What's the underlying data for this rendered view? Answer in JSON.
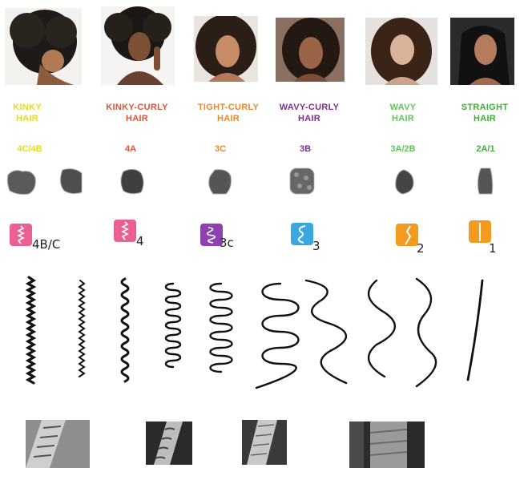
{
  "categories": [
    {
      "line1": "KINKY",
      "line2": "HAIR",
      "code": "4C/4B",
      "color": "#e5dd1a"
    },
    {
      "line1": "KINKY-CURLY",
      "line2": "HAIR",
      "code": "4A",
      "color": "#d9543a"
    },
    {
      "line1": "TIGHT-CURLY",
      "line2": "HAIR",
      "code": "3C",
      "color": "#e8892e"
    },
    {
      "line1": "WAVY-CURLY",
      "line2": "HAIR",
      "code": "3B",
      "color": "#7b2f8e"
    },
    {
      "line1": "WAVY",
      "line2": "HAIR",
      "code": "3A/2B",
      "color": "#63c35b"
    },
    {
      "line1": "STRAIGHT",
      "line2": "HAIR",
      "code": "2A/1",
      "color": "#3fae3a"
    }
  ],
  "badges": [
    {
      "label": "4B/C",
      "color": "#ec5f93",
      "icon": "kinky-wave-icon"
    },
    {
      "label": "4",
      "color": "#ec5f93",
      "icon": "kinky-wave-icon"
    },
    {
      "label": "3c",
      "color": "#8e3fb0",
      "icon": "spiral-icon"
    },
    {
      "label": "3",
      "color": "#3aa7e0",
      "icon": "s-curl-icon"
    },
    {
      "label": "2",
      "color": "#f39b1e",
      "icon": "bent-strand-icon"
    },
    {
      "label": "1",
      "color": "#f39b1e",
      "icon": "straight-strand-icon"
    }
  ]
}
